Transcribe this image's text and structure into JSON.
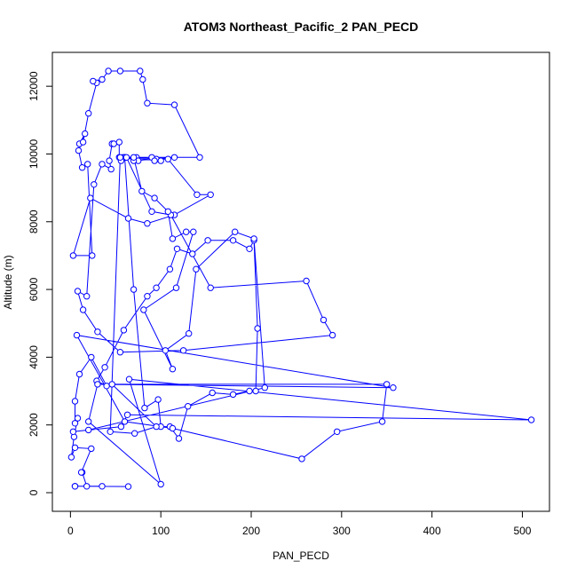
{
  "chart_data": {
    "type": "line",
    "title": "ATOM3 Northeast_Pacific_2 PAN_PECD",
    "xlabel": "PAN_PECD",
    "ylabel": "Altitude (m)",
    "xlim": [
      -20,
      530
    ],
    "ylim": [
      -550,
      13000
    ],
    "x_ticks": [
      0,
      100,
      200,
      300,
      400,
      500
    ],
    "y_ticks": [
      0,
      2000,
      4000,
      6000,
      8000,
      10000,
      12000
    ],
    "grid": false,
    "marker": "open-circle",
    "line_color": "#0000ff",
    "series": [
      {
        "x": [
          64,
          5,
          35,
          5,
          18,
          13,
          12,
          23,
          5,
          1,
          4,
          8,
          5,
          5,
          10,
          23,
          40,
          29,
          38,
          59,
          85,
          95,
          110,
          118,
          135,
          152,
          180,
          198,
          203,
          207,
          205,
          198,
          180,
          157,
          130,
          120,
          110,
          100,
          97,
          82,
          70,
          60,
          58,
          73,
          95,
          108,
          140,
          155,
          115,
          85,
          64,
          22,
          3,
          24,
          19,
          13,
          9,
          16,
          10,
          14,
          20,
          29,
          25,
          35,
          42,
          55,
          77,
          80,
          85,
          115,
          143,
          60,
          75,
          70,
          115,
          90,
          93,
          100,
          62,
          90,
          111,
          155,
          261,
          280,
          290,
          125,
          55,
          30,
          14,
          8,
          18,
          26,
          35,
          45,
          43,
          46,
          48,
          54,
          54,
          56,
          70,
          79,
          93,
          108,
          113,
          128,
          136,
          117,
          81,
          113,
          105,
          131,
          139,
          182,
          203,
          215,
          20,
          3,
          56,
          63,
          510,
          65,
          100,
          20,
          30,
          357,
          7,
          60,
          113,
          256,
          295,
          345,
          350,
          46,
          95,
          71,
          44,
          55
        ],
        "y": [
          180,
          190,
          190,
          190,
          190,
          600,
          600,
          1300,
          1330,
          1050,
          1650,
          2200,
          2050,
          2700,
          3500,
          4000,
          3150,
          3300,
          3700,
          4800,
          5800,
          6050,
          6600,
          7200,
          7050,
          7450,
          7450,
          7200,
          7450,
          4850,
          3000,
          3000,
          2900,
          2950,
          2550,
          1600,
          1950,
          1950,
          2750,
          2500,
          6000,
          9900,
          9900,
          9900,
          9850,
          9850,
          8800,
          8800,
          8200,
          7950,
          8100,
          8700,
          7000,
          7000,
          9700,
          9600,
          10100,
          10600,
          10300,
          10350,
          11200,
          12100,
          12150,
          12200,
          12450,
          12450,
          12450,
          12200,
          11500,
          11450,
          9900,
          9900,
          9800,
          9800,
          9900,
          9900,
          9800,
          9800,
          9900,
          8300,
          8200,
          6050,
          6250,
          5100,
          4650,
          4200,
          4150,
          4750,
          5400,
          5950,
          5800,
          9100,
          9700,
          9550,
          9800,
          10300,
          10300,
          10350,
          9900,
          9800,
          9900,
          8900,
          8700,
          8300,
          7500,
          7700,
          7700,
          6050,
          5400,
          3650,
          4200,
          4700,
          6600,
          7700,
          7500,
          3100,
          1850,
          1800,
          1950,
          2300,
          2150,
          3350,
          250,
          2100,
          3200,
          3100,
          4650,
          2100,
          1900,
          1000,
          1800,
          2100,
          3200,
          3200,
          1950,
          1750,
          1800,
          9900
        ],
        "name": ""
      }
    ]
  }
}
